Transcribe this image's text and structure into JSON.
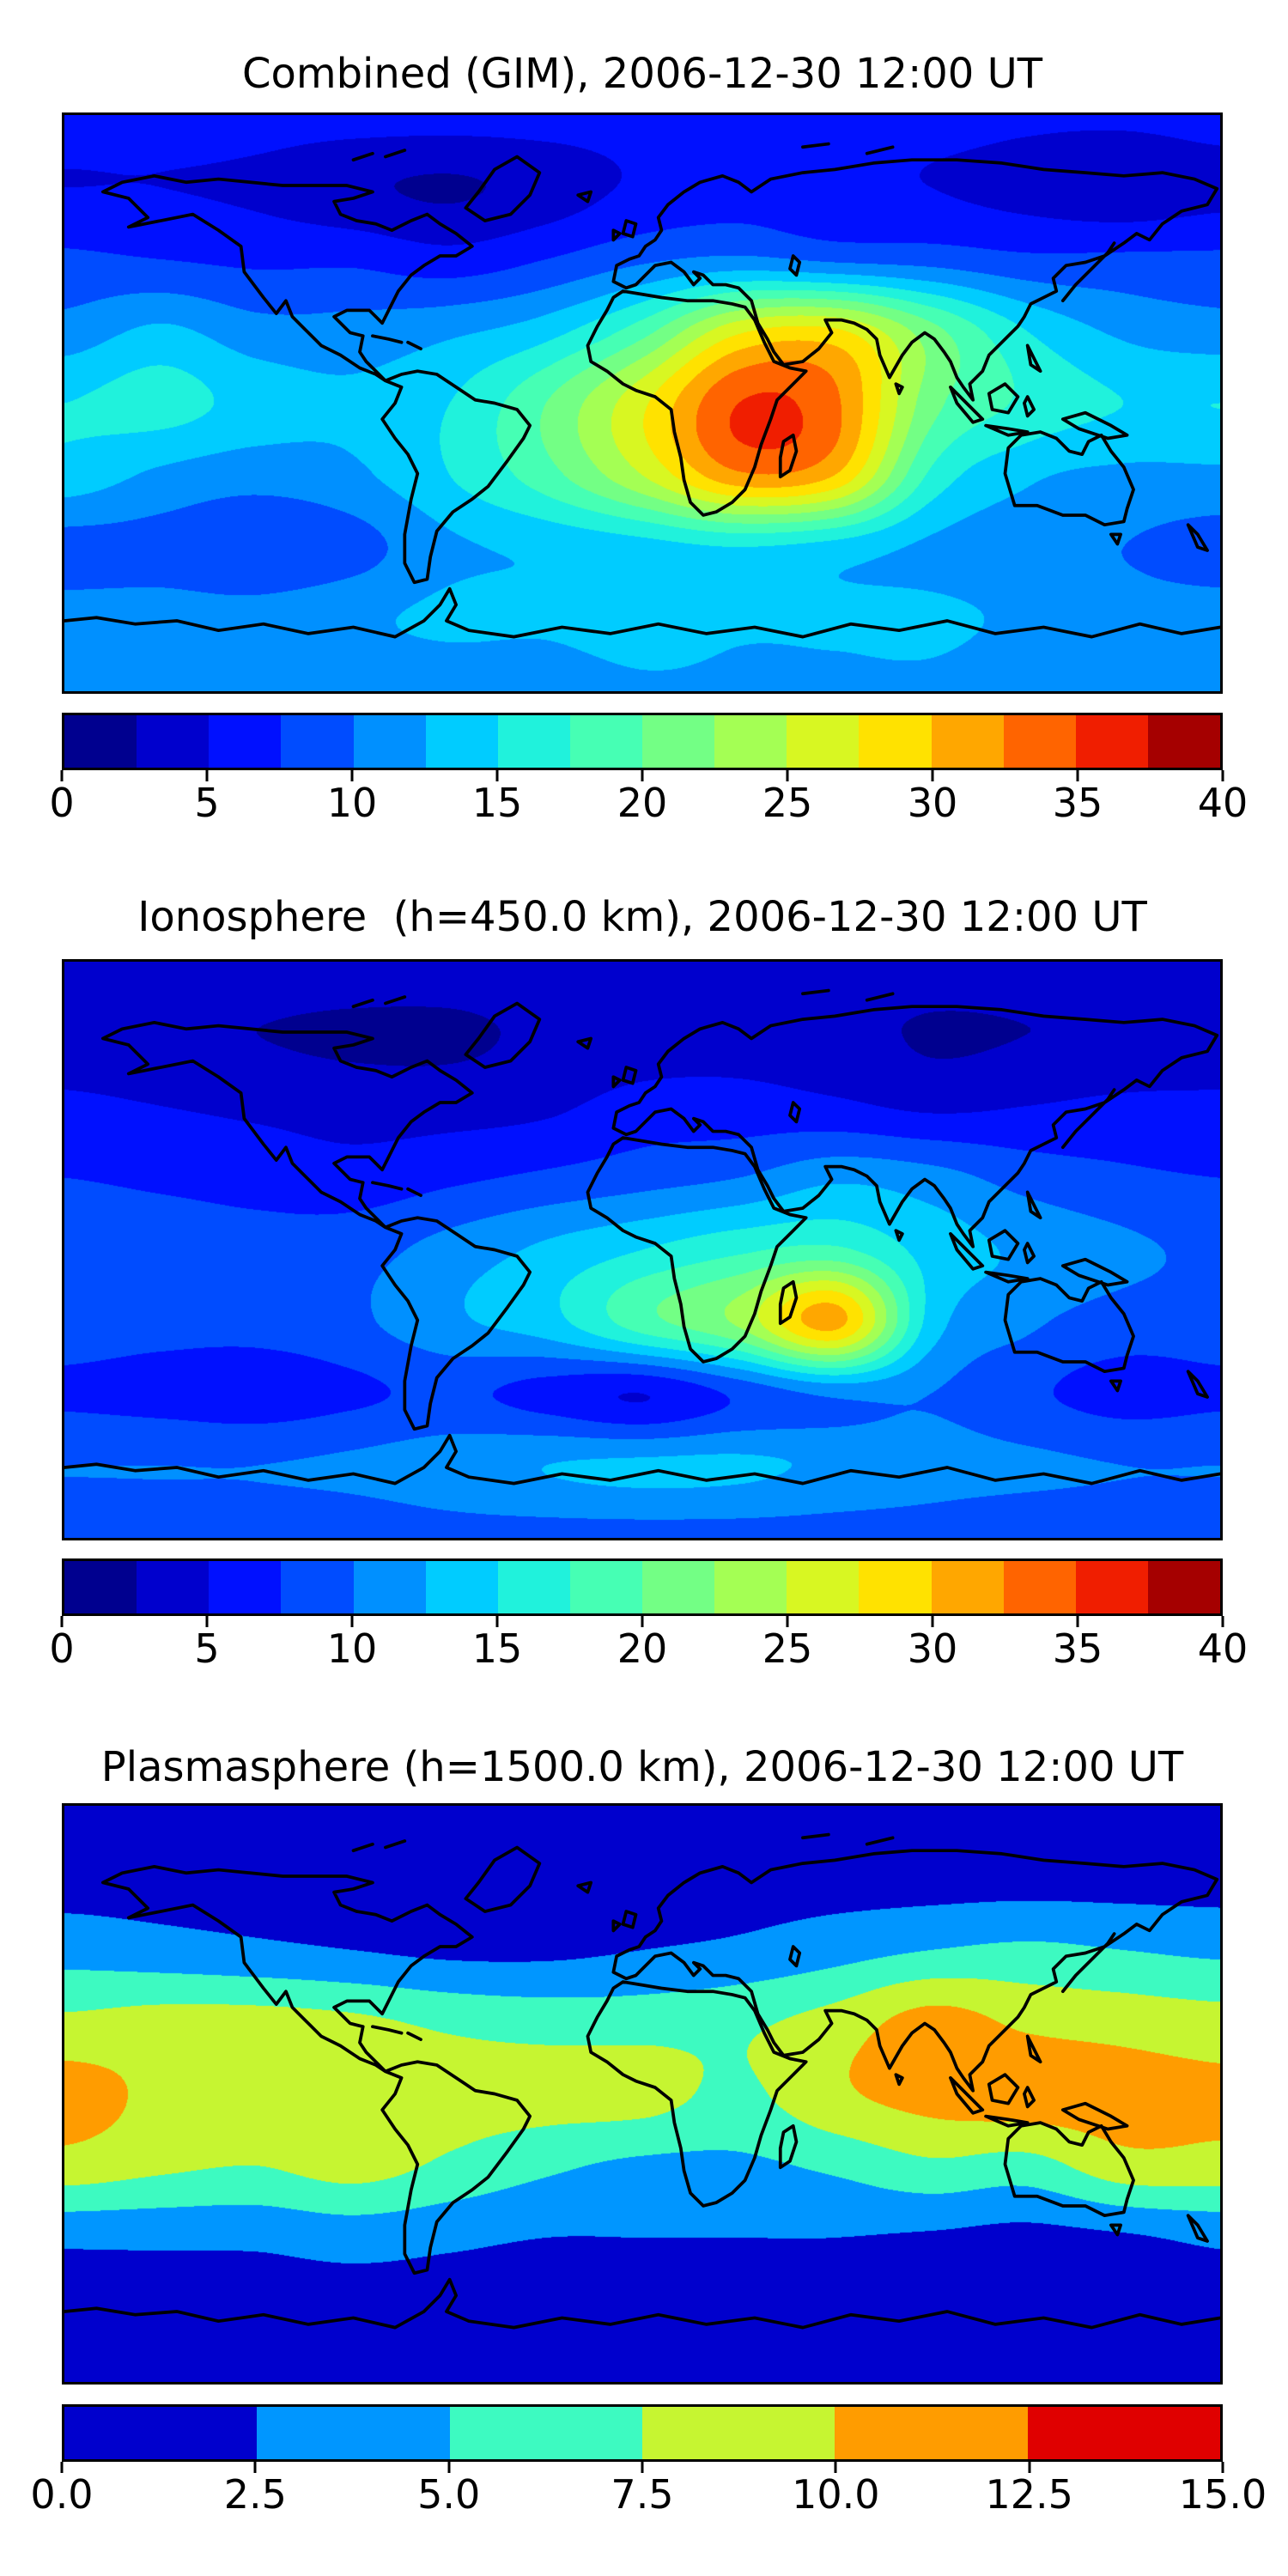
{
  "figure": {
    "background": "#ffffff",
    "coastline_color": "#000000"
  },
  "chart_data": [
    {
      "type": "heatmap",
      "subtype": "filled_contour_world_map",
      "title": "Combined (GIM), 2006-12-30 12:00 UT",
      "projection": "equirectangular",
      "lon_range": [
        -180,
        180
      ],
      "lat_range": [
        -90,
        90
      ],
      "vmin": 0,
      "vmax": 40,
      "n_levels": 16,
      "colorbar_ticks": [
        0,
        5,
        10,
        15,
        20,
        25,
        30,
        35,
        40
      ],
      "colorbar_tick_labels": [
        "0",
        "5",
        "10",
        "15",
        "20",
        "25",
        "30",
        "35",
        "40"
      ],
      "legend_position": "bottom",
      "palette": [
        "#00008f",
        "#0000cd",
        "#0010ff",
        "#004cff",
        "#0090ff",
        "#00ccff",
        "#20f2dc",
        "#46ffb4",
        "#73ff85",
        "#a4ff54",
        "#d8f722",
        "#ffe200",
        "#ffa700",
        "#ff6400",
        "#f01e00",
        "#a50000"
      ],
      "grid_lats": [
        90,
        67.5,
        45,
        22.5,
        0,
        -22.5,
        -45,
        -67.5,
        -90
      ],
      "grid_lons": [
        -180,
        -150,
        -120,
        -90,
        -60,
        -30,
        0,
        30,
        60,
        90,
        120,
        150,
        180
      ],
      "values": [
        [
          6,
          6,
          6,
          6,
          6,
          6,
          6,
          6,
          6,
          6,
          5.5,
          5.5,
          6
        ],
        [
          5,
          5,
          4.5,
          3,
          2.2,
          3.5,
          5.5,
          6.5,
          6,
          5,
          4,
          3,
          4
        ],
        [
          8,
          7.5,
          7,
          7,
          6,
          7.5,
          9.5,
          10.5,
          9.5,
          9,
          8,
          8,
          8
        ],
        [
          11,
          13,
          11,
          11,
          12,
          14,
          19,
          27,
          28,
          21,
          15,
          12,
          11
        ],
        [
          15,
          16,
          14,
          13,
          15,
          20,
          27,
          35,
          33,
          21,
          17,
          15,
          15
        ],
        [
          14,
          12,
          11,
          12,
          15,
          19,
          25,
          32,
          30,
          17,
          13,
          12,
          12
        ],
        [
          9,
          9,
          8,
          9,
          12,
          13,
          14,
          15,
          14,
          12,
          11,
          10,
          9
        ],
        [
          11,
          11,
          11,
          12,
          13,
          13,
          14,
          13,
          13,
          13,
          12,
          11,
          11
        ],
        [
          11,
          11,
          11,
          11,
          11,
          11,
          12,
          12,
          12,
          12,
          11,
          11,
          11
        ]
      ]
    },
    {
      "type": "heatmap",
      "subtype": "filled_contour_world_map",
      "title": "Ionosphere  (h=450.0 km), 2006-12-30 12:00 UT",
      "projection": "equirectangular",
      "lon_range": [
        -180,
        180
      ],
      "lat_range": [
        -90,
        90
      ],
      "vmin": 0,
      "vmax": 40,
      "n_levels": 16,
      "colorbar_ticks": [
        0,
        5,
        10,
        15,
        20,
        25,
        30,
        35,
        40
      ],
      "colorbar_tick_labels": [
        "0",
        "5",
        "10",
        "15",
        "20",
        "25",
        "30",
        "35",
        "40"
      ],
      "legend_position": "bottom",
      "palette": [
        "#00008f",
        "#0000cd",
        "#0010ff",
        "#004cff",
        "#0090ff",
        "#00ccff",
        "#20f2dc",
        "#46ffb4",
        "#73ff85",
        "#a4ff54",
        "#d8f722",
        "#ffe200",
        "#ffa700",
        "#ff6400",
        "#f01e00",
        "#a50000"
      ],
      "grid_lats": [
        90,
        67.5,
        45,
        22.5,
        0,
        -22.5,
        -45,
        -67.5,
        -90
      ],
      "grid_lons": [
        -180,
        -150,
        -120,
        -90,
        -60,
        -30,
        0,
        30,
        60,
        90,
        120,
        150,
        180
      ],
      "values": [
        [
          4,
          4,
          4,
          4,
          4,
          4,
          4,
          4,
          4,
          4,
          4,
          4,
          4
        ],
        [
          3.5,
          3,
          2.5,
          2,
          2,
          3,
          3.5,
          4,
          3.5,
          2.2,
          2.5,
          3,
          3.5
        ],
        [
          5.5,
          5,
          4.5,
          4,
          4,
          4.5,
          6,
          6,
          5.5,
          4.5,
          5,
          5.5,
          5.5
        ],
        [
          7.5,
          7,
          6.5,
          6,
          7,
          8,
          9,
          10,
          12,
          11,
          9,
          8,
          7.5
        ],
        [
          9.5,
          9,
          8.5,
          9,
          11,
          13,
          15,
          17,
          18,
          14,
          12,
          10.5,
          9.5
        ],
        [
          9,
          8.5,
          8.5,
          9.5,
          12,
          14,
          19,
          23,
          31,
          14,
          10.5,
          9,
          9
        ],
        [
          7,
          6.5,
          6,
          7,
          8,
          6.5,
          5,
          8,
          10.5,
          10,
          8,
          6.5,
          7
        ],
        [
          10,
          10,
          10,
          10.5,
          11.5,
          12.5,
          13,
          13,
          12,
          11,
          10.5,
          10,
          10
        ],
        [
          8.5,
          8.5,
          8.5,
          8.5,
          9,
          9,
          9,
          9,
          9,
          9,
          8.5,
          8.5,
          8.5
        ]
      ]
    },
    {
      "type": "heatmap",
      "subtype": "filled_contour_world_map",
      "title": "Plasmasphere (h=1500.0 km), 2006-12-30 12:00 UT",
      "projection": "equirectangular",
      "lon_range": [
        -180,
        180
      ],
      "lat_range": [
        -90,
        90
      ],
      "vmin": 0,
      "vmax": 15,
      "n_levels": 6,
      "colorbar_ticks": [
        0.0,
        2.5,
        5.0,
        7.5,
        10.0,
        12.5,
        15.0
      ],
      "colorbar_tick_labels": [
        "0.0",
        "2.5",
        "5.0",
        "7.5",
        "10.0",
        "12.5",
        "15.0"
      ],
      "legend_position": "bottom",
      "palette": [
        "#0000cd",
        "#0096ff",
        "#3dfac1",
        "#c6f531",
        "#ff9c00",
        "#e00000"
      ],
      "grid_lats": [
        90,
        67.5,
        45,
        22.5,
        0,
        -22.5,
        -45,
        -67.5,
        -90
      ],
      "grid_lons": [
        -180,
        -150,
        -120,
        -90,
        -60,
        -30,
        0,
        30,
        60,
        90,
        120,
        150,
        180
      ],
      "values": [
        [
          1,
          1,
          1,
          1,
          1,
          1,
          1,
          1,
          1,
          1,
          1,
          1,
          1
        ],
        [
          1.5,
          1.5,
          1.5,
          1.5,
          1.5,
          1.5,
          1.5,
          1.5,
          1.5,
          1.5,
          1.5,
          1.5,
          1.5
        ],
        [
          4,
          3.5,
          3,
          2.5,
          2,
          2,
          2.5,
          3,
          4,
          5,
          5.5,
          5,
          4.5
        ],
        [
          8,
          8.5,
          8.5,
          8,
          7,
          6.5,
          6.5,
          7,
          8.5,
          11,
          9.5,
          9,
          8.5
        ],
        [
          11,
          9.5,
          9,
          9,
          8.5,
          8.5,
          8.5,
          7,
          9.5,
          11,
          11.5,
          11,
          10.5
        ],
        [
          9,
          8,
          7.5,
          8.5,
          7,
          5.5,
          4.5,
          4.5,
          5.5,
          7,
          6.5,
          9,
          9
        ],
        [
          3,
          3,
          3,
          3.5,
          3,
          2.5,
          2.5,
          2.5,
          2.5,
          2.2,
          1.8,
          2.2,
          3
        ],
        [
          1.5,
          1.5,
          1.5,
          1.5,
          1.5,
          1.5,
          1.5,
          1.5,
          1.5,
          1.5,
          1.5,
          1.5,
          1.5
        ],
        [
          1,
          1,
          1,
          1,
          1,
          1,
          1,
          1,
          1,
          1,
          1,
          1,
          1
        ]
      ]
    }
  ]
}
